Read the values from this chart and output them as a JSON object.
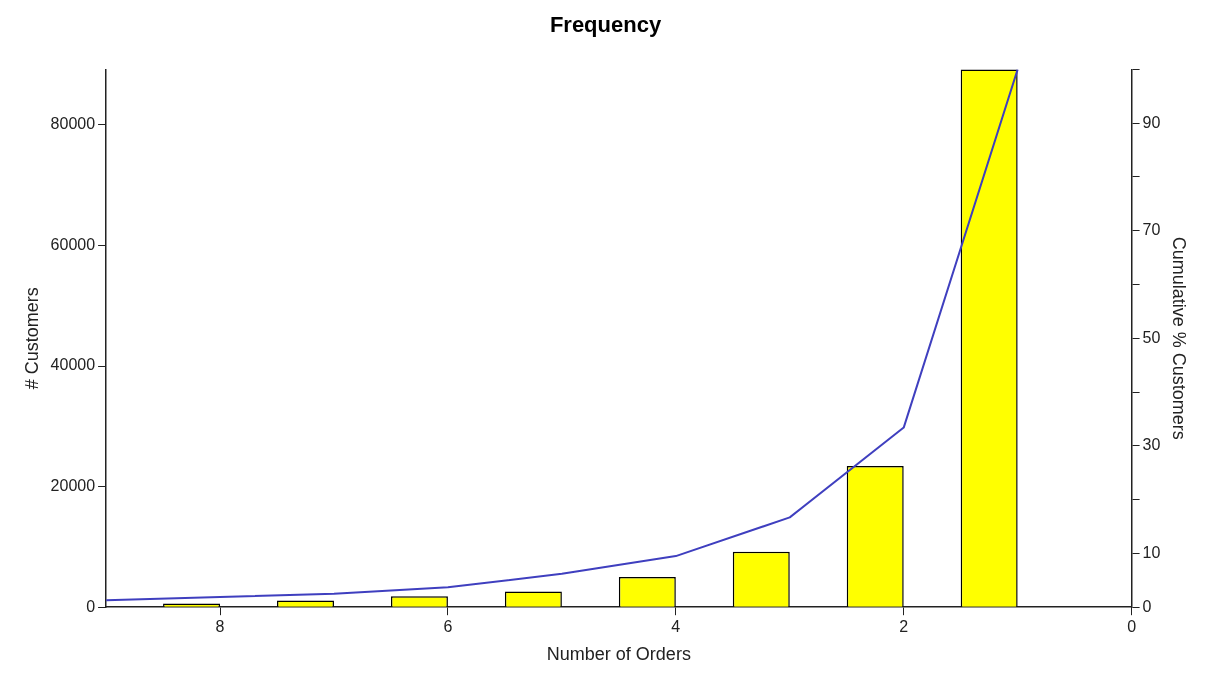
{
  "chart_data": {
    "type": "bar",
    "title": "Frequency",
    "xlabel": "Number of Orders",
    "ylabel": "# Customers",
    "y2label": "Cumulative % Customers",
    "xlim": [
      9,
      0
    ],
    "xticks": [
      8,
      6,
      4,
      2,
      0
    ],
    "ylim": [
      0,
      89200
    ],
    "yticks": [
      0,
      20000,
      40000,
      60000,
      80000
    ],
    "y2lim": [
      0,
      100
    ],
    "y2ticks": [
      0,
      10,
      {
        "value": 20,
        "label": null
      },
      30,
      {
        "value": 40,
        "label": null
      },
      50,
      {
        "value": 60,
        "label": null
      },
      70,
      {
        "value": 80,
        "label": null
      },
      90,
      {
        "value": 100,
        "label": null
      }
    ],
    "grid": false,
    "legend": false,
    "series": [
      {
        "color": "#ffff00",
        "x": [
          1.25,
          2.25,
          3.25,
          4.25,
          5.25,
          6.25,
          7.25,
          8.25
        ],
        "values": [
          89200,
          23400,
          9200,
          5000,
          2600,
          1800,
          1100,
          600
        ]
      },
      {
        "type": "line",
        "axis": "y2",
        "color": "#3f3fbf",
        "marker": "none",
        "line_style": "solid",
        "x": [
          1,
          2,
          3,
          4,
          5,
          6,
          7,
          8,
          9
        ],
        "values": [
          100,
          33.4,
          16.7,
          9.5,
          6.2,
          3.7,
          2.5,
          1.9,
          1.3
        ]
      }
    ]
  }
}
